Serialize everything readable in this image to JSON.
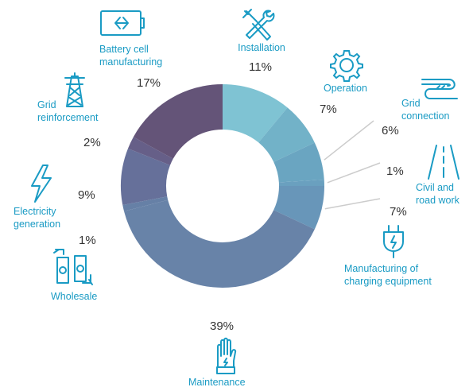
{
  "colors": {
    "label": "#1a9bc4",
    "icon": "#1a9bc4",
    "leader": "#cccccc",
    "percent": "#333333"
  },
  "chart_data": {
    "type": "pie",
    "donut": true,
    "slices": [
      {
        "label": "Installation",
        "percent_label": "11%",
        "value": 11,
        "color": "#7fc3d3",
        "icon": "wrench-screwdriver-icon"
      },
      {
        "label": "Operation",
        "percent_label": "7%",
        "value": 7,
        "color": "#72b2c8",
        "icon": "gear-icon"
      },
      {
        "label": "Grid\nconnection",
        "percent_label": "6%",
        "value": 6,
        "color": "#6aa5c1",
        "icon": "cable-plug-icon"
      },
      {
        "label": "Civil and\nroad work",
        "percent_label": "1%",
        "value": 1,
        "color": "#6aa0bf",
        "icon": "road-icon"
      },
      {
        "label": "Manufacturing of\ncharging equipment",
        "percent_label": "7%",
        "value": 7,
        "color": "#6896b9",
        "icon": "charging-plug-icon"
      },
      {
        "label": "Maintenance",
        "percent_label": "39%",
        "value": 39,
        "color": "#6883a8",
        "icon": "glove-icon"
      },
      {
        "label": "Wholesale",
        "percent_label": "1%",
        "value": 1,
        "color": "#6680a6",
        "icon": "banknotes-icon"
      },
      {
        "label": "Electricity\ngeneration",
        "percent_label": "9%",
        "value": 9,
        "color": "#66709a",
        "icon": "lightning-icon"
      },
      {
        "label": "Grid\nreinforcement",
        "percent_label": "2%",
        "value": 2,
        "color": "#665f88",
        "icon": "pylon-icon"
      },
      {
        "label": "Battery cell\nmanufacturing",
        "percent_label": "17%",
        "value": 17,
        "color": "#645478",
        "icon": "battery-icon"
      }
    ]
  }
}
